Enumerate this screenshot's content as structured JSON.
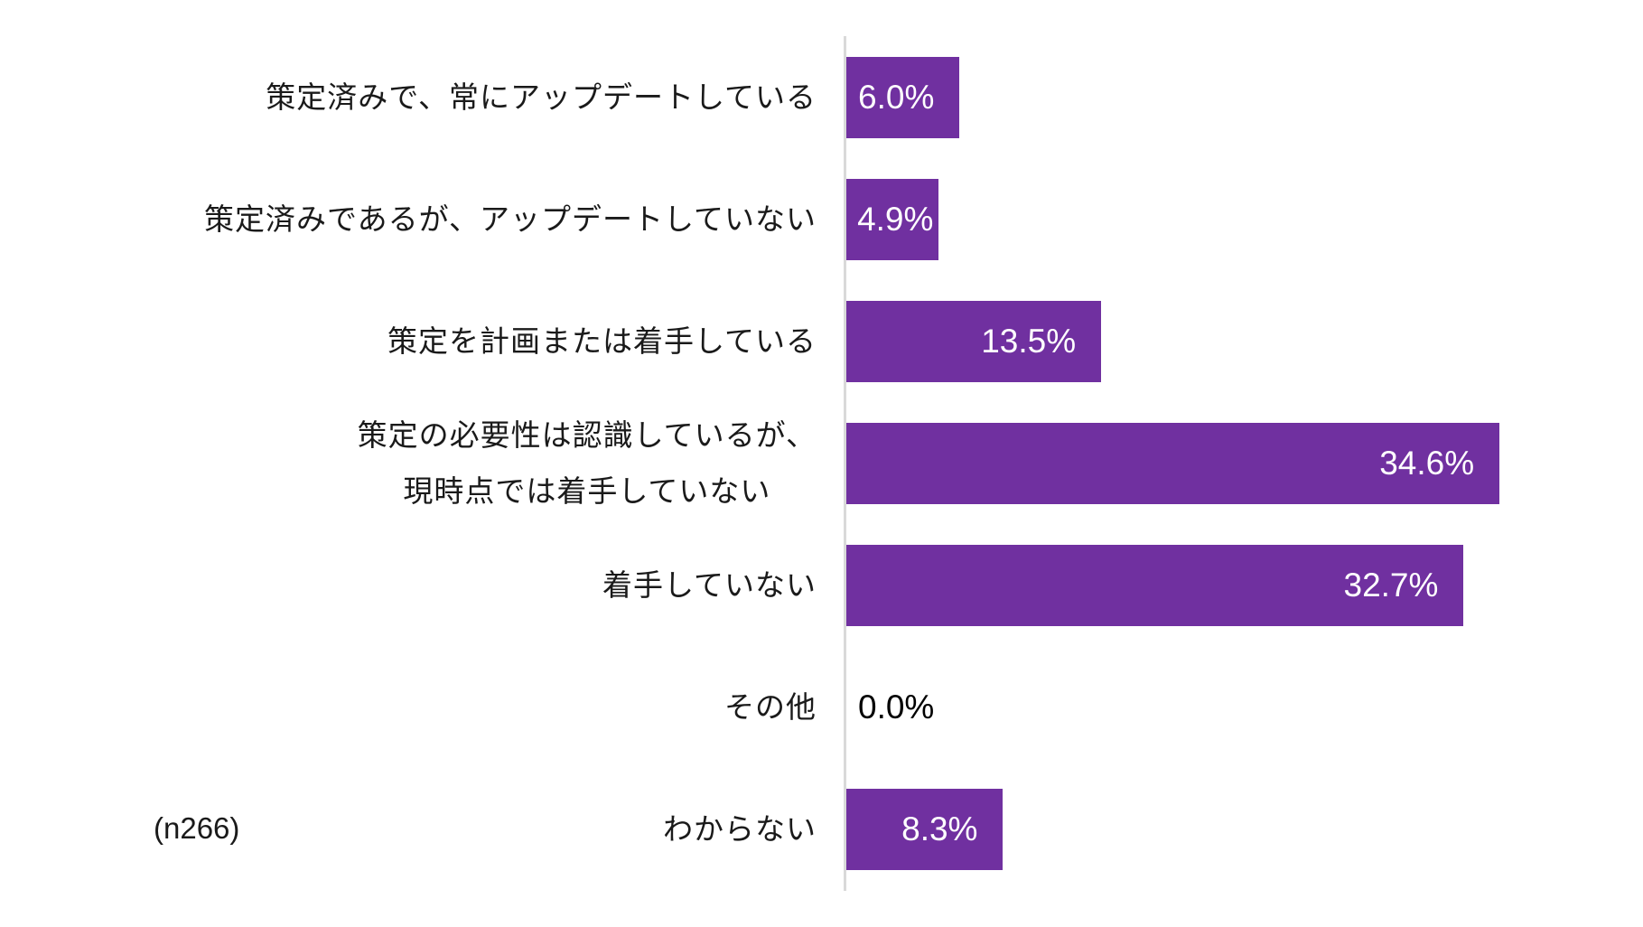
{
  "chart_data": {
    "type": "bar",
    "orientation": "horizontal",
    "title": "",
    "xlabel": "",
    "ylabel": "",
    "categories": [
      "策定済みで、常にアップデートしている",
      "策定済みであるが、アップデートしていない",
      "策定を計画または着手している",
      "策定の必要性は認識しているが、現時点では着手していない",
      "着手していない",
      "その他",
      "わからない"
    ],
    "values": [
      6.0,
      4.9,
      13.5,
      34.6,
      32.7,
      0.0,
      8.3
    ],
    "value_labels": [
      "6.0%",
      "4.9%",
      "13.5%",
      "34.6%",
      "32.7%",
      "0.0%",
      "8.3%"
    ],
    "unit": "%",
    "xlim": [
      0,
      40
    ],
    "grid": false,
    "legend": null,
    "bar_color": "#7030a0",
    "annotation": "(n266)"
  },
  "rows": [
    {
      "label_lines": [
        "策定済みで、常にアップデートしている"
      ],
      "value": "6.0%",
      "pct": 6.0
    },
    {
      "label_lines": [
        "策定済みであるが、アップデートしていない"
      ],
      "value": "4.9%",
      "pct": 4.9
    },
    {
      "label_lines": [
        "策定を計画または着手している"
      ],
      "value": "13.5%",
      "pct": 13.5
    },
    {
      "label_lines": [
        "策定の必要性は認識しているが、",
        "現時点では着手していない"
      ],
      "value": "34.6%",
      "pct": 34.6
    },
    {
      "label_lines": [
        "着手していない"
      ],
      "value": "32.7%",
      "pct": 32.7
    },
    {
      "label_lines": [
        "その他"
      ],
      "value": "0.0%",
      "pct": 0.0
    },
    {
      "label_lines": [
        "わからない"
      ],
      "value": "8.3%",
      "pct": 8.3
    }
  ],
  "sample_size": "(n266)",
  "colors": {
    "bar": "#7030a0",
    "axis": "#d9d9d9",
    "label_inside": "#ffffff",
    "label_outside": "#000000"
  }
}
